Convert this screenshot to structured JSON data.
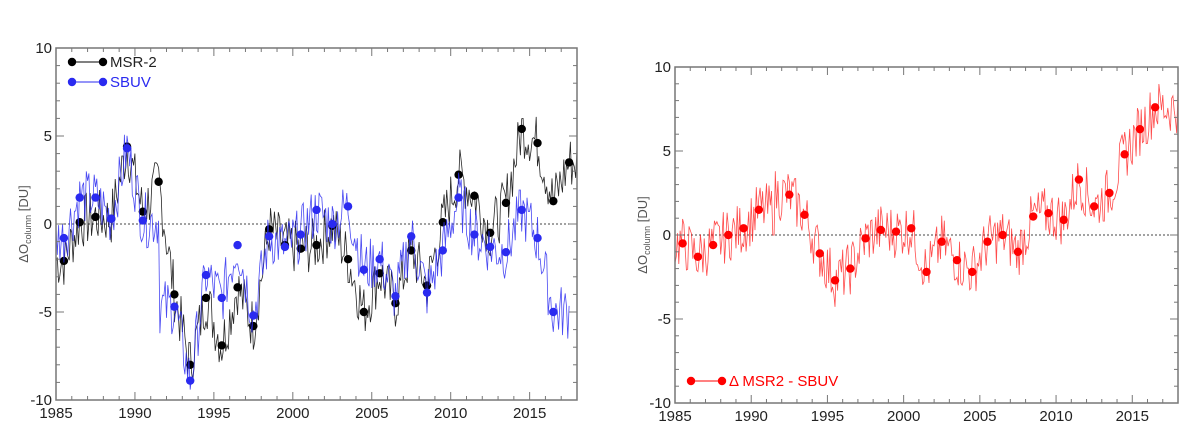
{
  "chart_data": [
    {
      "type": "line",
      "ylabel_main": "ΔO",
      "ylabel_sub": "column",
      "ylabel_unit": " [DU]",
      "xlim": [
        1985,
        2018
      ],
      "ylim": [
        -10,
        10
      ],
      "xticks": [
        "1985",
        "1990",
        "1995",
        "2000",
        "2005",
        "2010",
        "2015"
      ],
      "yticks": [
        "-10",
        "-5",
        "0",
        "5",
        "10"
      ],
      "zero_line": true,
      "legend_position": "top-left",
      "x": [
        1985.5,
        1986.5,
        1987.5,
        1988.5,
        1989.5,
        1990.5,
        1991.5,
        1992.5,
        1993.5,
        1994.5,
        1995.5,
        1996.5,
        1997.5,
        1998.5,
        1999.5,
        2000.5,
        2001.5,
        2002.5,
        2003.5,
        2004.5,
        2005.5,
        2006.5,
        2007.5,
        2008.5,
        2009.5,
        2010.5,
        2011.5,
        2012.5,
        2013.5,
        2014.5,
        2015.5,
        2016.5,
        2017.5
      ],
      "series": [
        {
          "name": "MSR-2",
          "color": "#000000",
          "values": [
            -2.1,
            0.1,
            0.4,
            0.3,
            4.4,
            0.7,
            2.4,
            -4.0,
            -8.0,
            -4.2,
            -6.9,
            -3.6,
            -5.8,
            -0.3,
            -1.2,
            -1.4,
            -1.2,
            -0.1,
            -2.0,
            -5.0,
            -2.8,
            -4.5,
            -1.5,
            -3.5,
            0.1,
            2.8,
            1.6,
            -0.5,
            1.2,
            5.4,
            4.6,
            1.3,
            3.5
          ]
        },
        {
          "name": "SBUV",
          "color": "#2a2af0",
          "values": [
            -0.8,
            1.5,
            1.5,
            0.3,
            4.3,
            0.2,
            null,
            -4.7,
            -8.9,
            -2.9,
            -4.2,
            -1.2,
            -5.2,
            -0.7,
            -1.3,
            -0.6,
            0.8,
            0.0,
            1.0,
            -2.6,
            -2.0,
            -4.1,
            -0.7,
            -3.9,
            -1.5,
            1.5,
            -0.6,
            -1.3,
            -1.6,
            0.8,
            -0.8,
            -5.0,
            null
          ]
        }
      ]
    },
    {
      "type": "line",
      "ylabel_main": "ΔO",
      "ylabel_sub": "column",
      "ylabel_unit": " [DU]",
      "xlim": [
        1985,
        2018
      ],
      "ylim": [
        -10,
        10
      ],
      "xticks": [
        "1985",
        "1990",
        "1995",
        "2000",
        "2005",
        "2010",
        "2015"
      ],
      "yticks": [
        "-10",
        "-5",
        "0",
        "5",
        "10"
      ],
      "zero_line": true,
      "legend_position": "bottom-left",
      "x": [
        1985.5,
        1986.5,
        1987.5,
        1988.5,
        1989.5,
        1990.5,
        1991.5,
        1992.5,
        1993.5,
        1994.5,
        1995.5,
        1996.5,
        1997.5,
        1998.5,
        1999.5,
        2000.5,
        2001.5,
        2002.5,
        2003.5,
        2004.5,
        2005.5,
        2006.5,
        2007.5,
        2008.5,
        2009.5,
        2010.5,
        2011.5,
        2012.5,
        2013.5,
        2014.5,
        2015.5,
        2016.5
      ],
      "series": [
        {
          "name": "Δ MSR2 - SBUV",
          "color": "#ff0000",
          "values": [
            -0.5,
            -1.3,
            -0.6,
            0.0,
            0.4,
            1.5,
            null,
            2.4,
            1.2,
            -1.1,
            -2.7,
            -2.0,
            -0.2,
            0.3,
            0.2,
            0.4,
            -2.2,
            -0.4,
            -1.5,
            -2.2,
            -0.4,
            0.0,
            -1.0,
            1.1,
            1.3,
            0.9,
            3.3,
            1.7,
            2.5,
            4.8,
            6.3,
            7.6
          ]
        }
      ]
    }
  ]
}
